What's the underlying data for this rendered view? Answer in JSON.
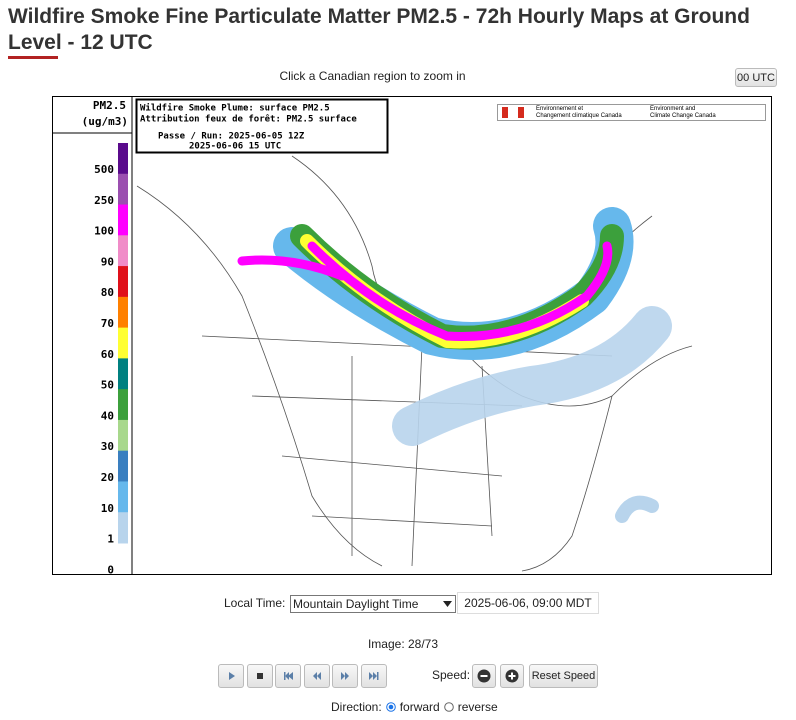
{
  "header": {
    "title": "Wildfire Smoke Fine Particulate Matter PM2.5 - 72h Hourly Maps at Ground Level - 12 UTC"
  },
  "hint": "Click a Canadian region to zoom in",
  "utc_button": "00 UTC",
  "map": {
    "info": [
      "Wildfire Smoke Plume: surface PM2.5",
      "Attribution feux de forêt: PM2.5 surface",
      "Passe / Run: 2025-06-05 12Z",
      "2025-06-06 15 UTC"
    ],
    "agency_fr": [
      "Environnement et",
      "Changement climatique Canada"
    ],
    "agency_en": [
      "Environment and",
      "Climate Change Canada"
    ],
    "legend": {
      "title": "PM2.5",
      "unit": "(ug/m3)",
      "labels": [
        "500",
        "250",
        "100",
        "90",
        "80",
        "70",
        "60",
        "50",
        "40",
        "30",
        "20",
        "10",
        "1",
        "0"
      ],
      "colors": [
        "#5a0a8c",
        "#9b4fb0",
        "#ff00ff",
        "#f08cc8",
        "#e0101a",
        "#ff8000",
        "#ffff33",
        "#008080",
        "#3ca03c",
        "#a8d88c",
        "#3a7fc0",
        "#66b8ec",
        "#b8d4ec"
      ]
    }
  },
  "controls": {
    "local_time_label": "Local Time:",
    "timezone": "Mountain Daylight Time",
    "datetime": "2025-06-06, 09:00 MDT",
    "image": "Image: 28/73",
    "speed_label": "Speed:",
    "reset_speed": "Reset Speed",
    "direction_label": "Direction:",
    "forward": "forward",
    "reverse": "reverse"
  }
}
